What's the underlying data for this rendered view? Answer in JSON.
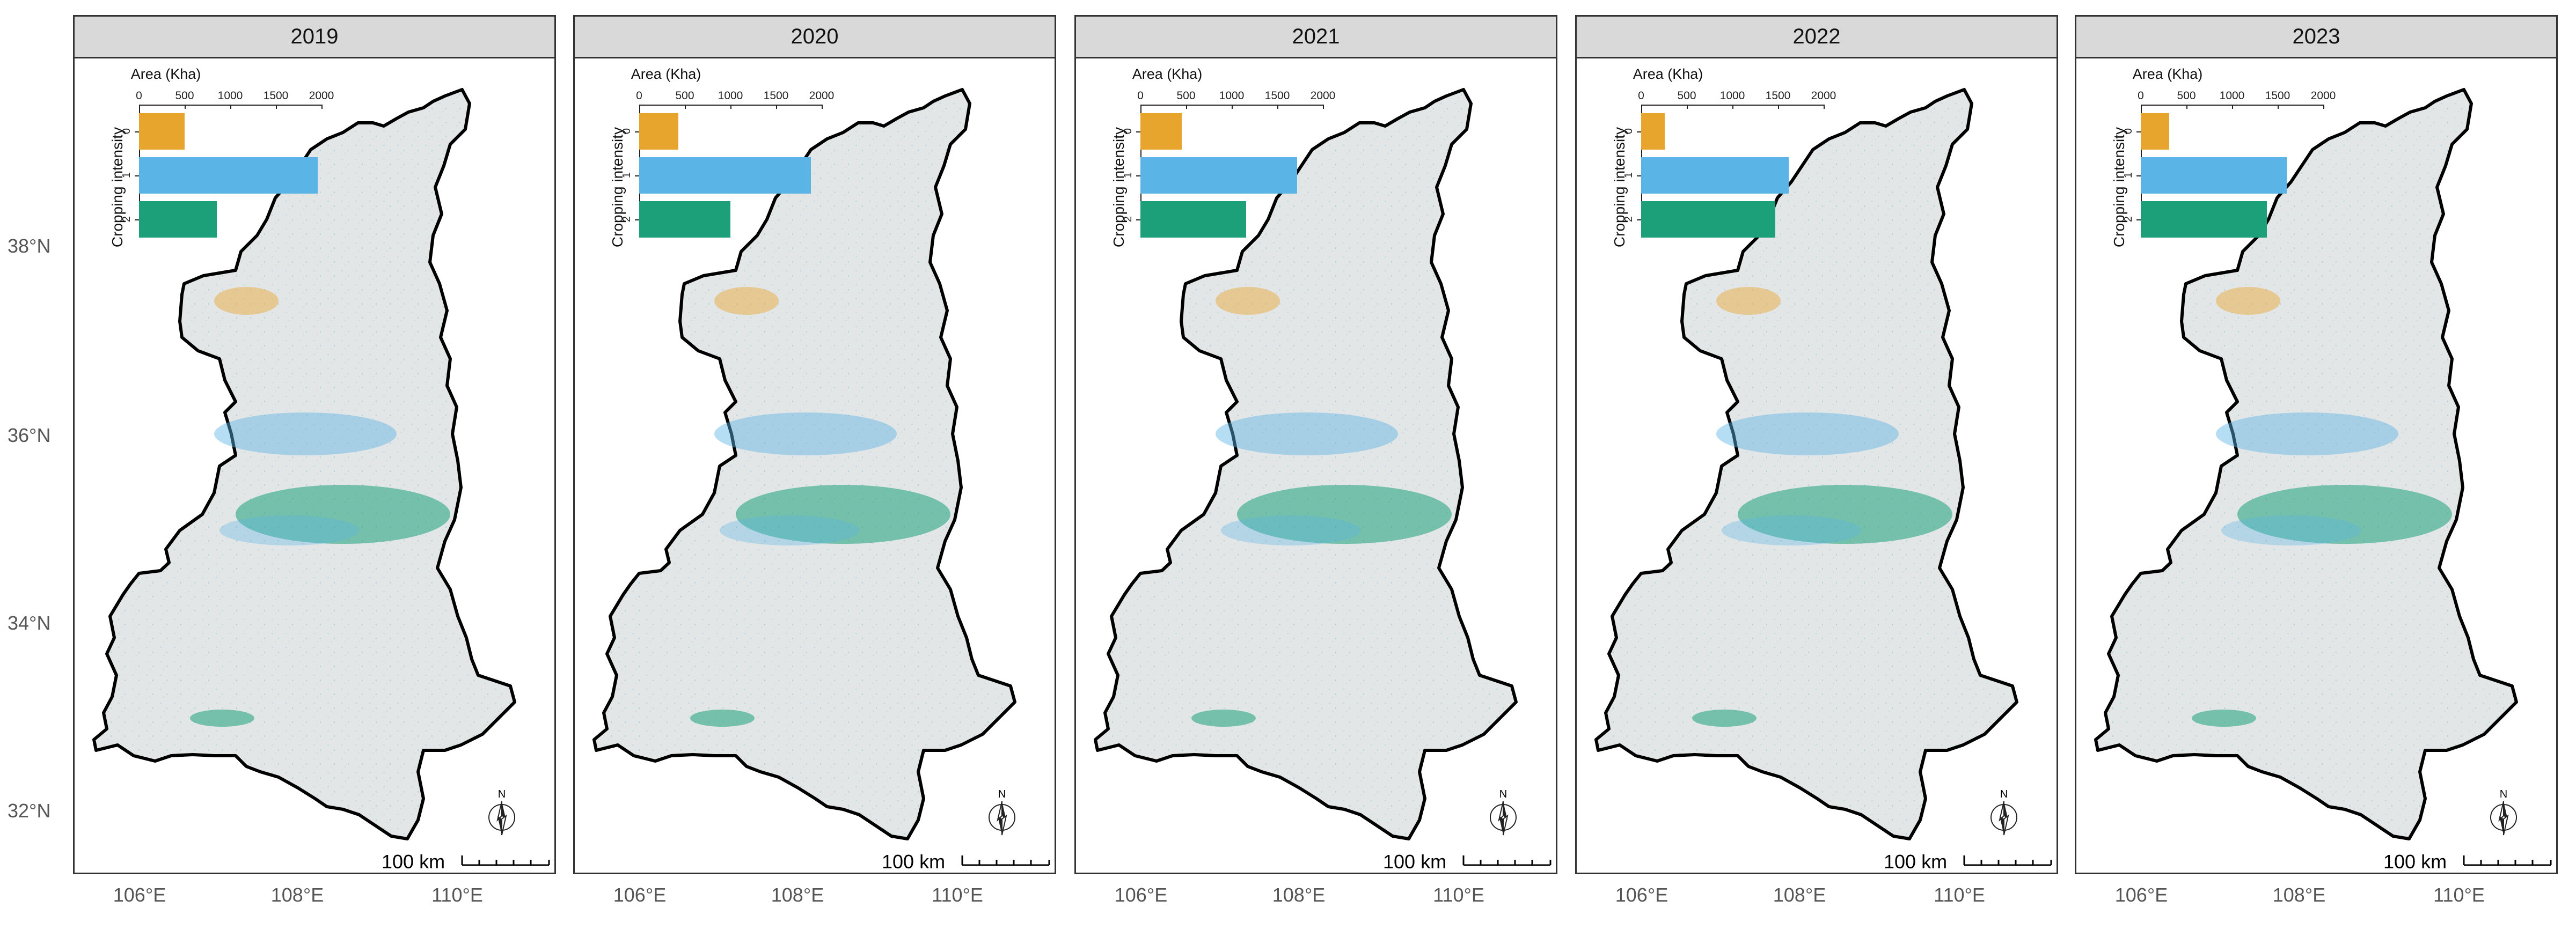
{
  "panels": [
    {
      "year": "2019",
      "values": [
        500,
        1960,
        850
      ]
    },
    {
      "year": "2020",
      "values": [
        430,
        1880,
        1000
      ]
    },
    {
      "year": "2021",
      "values": [
        450,
        1720,
        1160
      ]
    },
    {
      "year": "2022",
      "values": [
        260,
        1620,
        1470
      ]
    },
    {
      "year": "2023",
      "values": [
        310,
        1600,
        1380
      ]
    }
  ],
  "inset": {
    "title": "Area (Kha)",
    "ylabel": "Cropping intensity",
    "ticks": [
      "0",
      "500",
      "1000",
      "1500",
      "2000"
    ],
    "categories": [
      "0",
      "1",
      "2"
    ],
    "max": 2000
  },
  "colors": {
    "c0": "#E8A52E",
    "c1": "#5AB4E6",
    "c2": "#1BA07A",
    "land": "#e3e6e6"
  },
  "scalebar": "100 km",
  "north": "N",
  "y_axis": [
    "38°N",
    "36°N",
    "34°N",
    "32°N"
  ],
  "x_axis": [
    "106°E",
    "108°E",
    "110°E"
  ],
  "chart_data": {
    "type": "bar",
    "title": "Area (Kha)",
    "ylabel": "Cropping intensity",
    "categories": [
      "0",
      "1",
      "2"
    ],
    "xlim": [
      0,
      2000
    ],
    "series": [
      {
        "name": "2019",
        "values": [
          500,
          1960,
          850
        ]
      },
      {
        "name": "2020",
        "values": [
          430,
          1880,
          1000
        ]
      },
      {
        "name": "2021",
        "values": [
          450,
          1720,
          1160
        ]
      },
      {
        "name": "2022",
        "values": [
          260,
          1620,
          1470
        ]
      },
      {
        "name": "2023",
        "values": [
          310,
          1600,
          1380
        ]
      }
    ]
  }
}
